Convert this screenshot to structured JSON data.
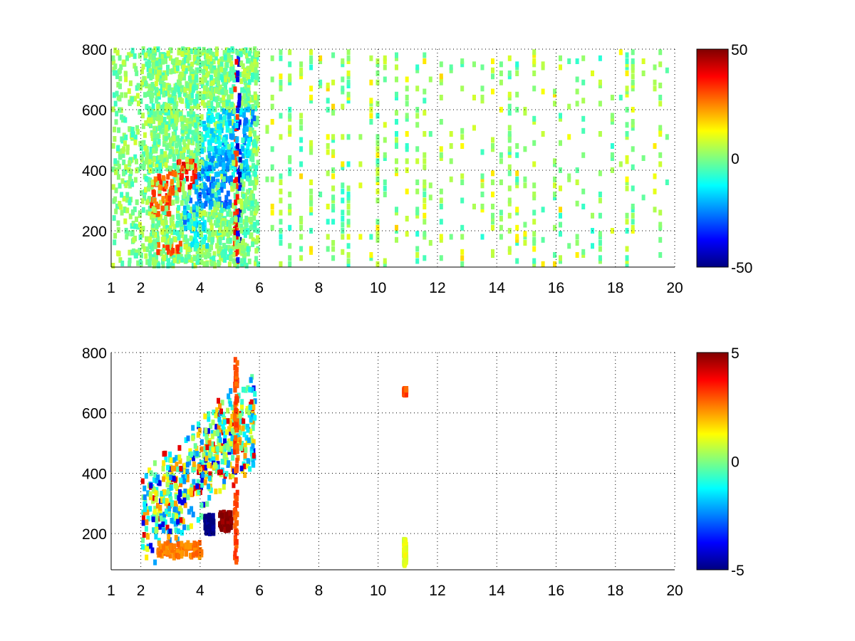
{
  "figure": {
    "background": "#ffffff"
  },
  "chart_data": [
    {
      "type": "heatmap",
      "title": "",
      "xlabel": "",
      "ylabel": "",
      "xlim": [
        1,
        20
      ],
      "ylim": [
        80,
        800
      ],
      "xticks": [
        1,
        2,
        4,
        6,
        8,
        10,
        12,
        14,
        16,
        18,
        20
      ],
      "yticks": [
        200,
        400,
        600,
        800
      ],
      "grid": true,
      "grid_style": "dotted",
      "colormap": "jet",
      "clim": [
        -50,
        50
      ],
      "colorbar": {
        "ticks": [
          50,
          0,
          -50
        ],
        "placement": "right"
      },
      "data_description": "Scattered cells; dense region for x between 1.5 and 5.8; positive cluster (+20 to +35) near x 2.4-3.0, y 260-380 and y 120-160; negative cluster (-20 to -35) near x 3.5-5.0, y 280-420; sparse near-zero (-10 to +10) vertical streaks for x 6-20.",
      "features": [
        {
          "x": [
            2.3,
            3.1
          ],
          "y": [
            250,
            400
          ],
          "value": 30
        },
        {
          "x": [
            3.2,
            3.8
          ],
          "y": [
            330,
            430
          ],
          "value": 35
        },
        {
          "x": [
            2.5,
            3.3
          ],
          "y": [
            120,
            160
          ],
          "value": 30
        },
        {
          "x": [
            3.8,
            5.0
          ],
          "y": [
            280,
            420
          ],
          "value": -25
        },
        {
          "x": [
            4.0,
            5.6
          ],
          "y": [
            380,
            600
          ],
          "value": -15
        },
        {
          "x": [
            3.5,
            4.2
          ],
          "y": [
            150,
            250
          ],
          "value": -12
        },
        {
          "x": [
            5.1,
            5.2
          ],
          "y": [
            100,
            780
          ],
          "value": 35
        },
        {
          "x": [
            5.2,
            5.3
          ],
          "y": [
            100,
            780
          ],
          "value": -40
        }
      ]
    },
    {
      "type": "heatmap",
      "title": "",
      "xlabel": "",
      "ylabel": "",
      "xlim": [
        1,
        20
      ],
      "ylim": [
        80,
        800
      ],
      "xticks": [
        1,
        2,
        4,
        6,
        8,
        10,
        12,
        14,
        16,
        18,
        20
      ],
      "yticks": [
        200,
        400,
        600,
        800
      ],
      "grid": true,
      "grid_style": "dotted",
      "colormap": "jet",
      "clim": [
        -5,
        5
      ],
      "colorbar": {
        "ticks": [
          5,
          0,
          -5
        ],
        "placement": "right"
      },
      "data_description": "Cells mostly confined to x between 2 and 6; a band of +2 to +3 near y 120-170 for x 2.5-4.0; dark negative (-5) patch near x 4.2, y 200-250; dark positive (+5) patch near x 4.8, y 220-260; a few isolated cells near x 6.5 and x 10.8.",
      "features": [
        {
          "x": [
            2.5,
            4.0
          ],
          "y": [
            120,
            170
          ],
          "value": 2.5
        },
        {
          "x": [
            4.1,
            4.4
          ],
          "y": [
            200,
            260
          ],
          "value": -5
        },
        {
          "x": [
            4.6,
            5.0
          ],
          "y": [
            210,
            270
          ],
          "value": 5
        },
        {
          "x": [
            5.1,
            5.2
          ],
          "y": [
            100,
            790
          ],
          "value": 3
        },
        {
          "x": [
            10.8,
            10.9
          ],
          "y": [
            660,
            680
          ],
          "value": 3
        },
        {
          "x": [
            10.8,
            10.9
          ],
          "y": [
            95,
            180
          ],
          "value": 1
        }
      ]
    }
  ]
}
